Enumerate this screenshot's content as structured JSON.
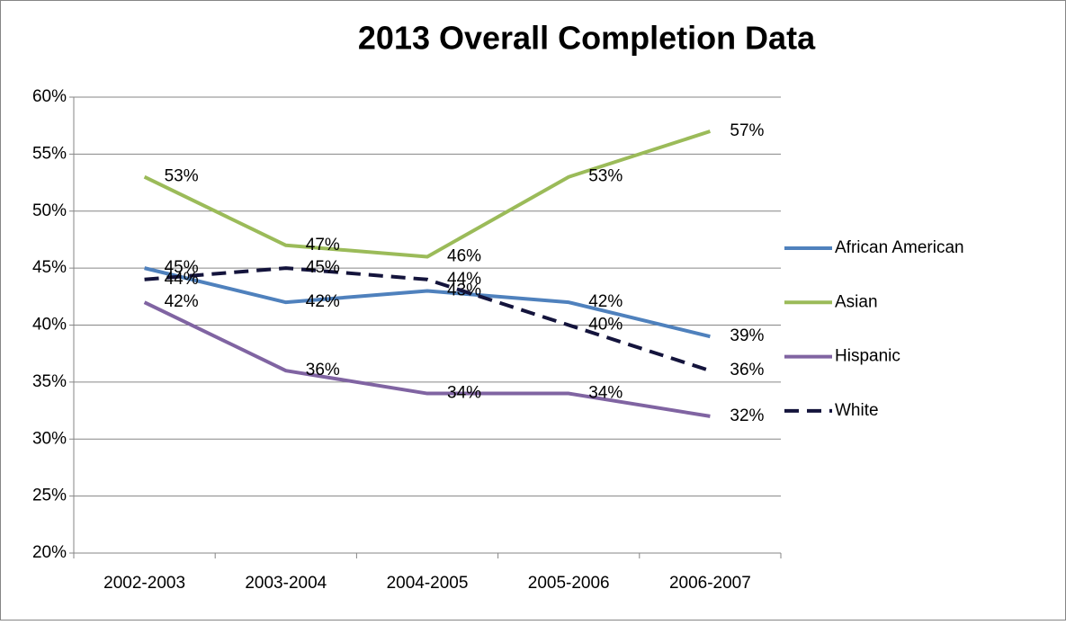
{
  "chart_data": {
    "type": "line",
    "title": "2013 Overall Completion Data",
    "categories": [
      "2002-2003",
      "2003-2004",
      "2004-2005",
      "2005-2006",
      "2006-2007"
    ],
    "series": [
      {
        "name": "African American",
        "color": "#4f81bd",
        "dashed": false,
        "values": [
          45,
          42,
          43,
          42,
          39
        ],
        "value_labels": [
          "45%",
          "42%",
          "43%",
          "42%",
          "39%"
        ]
      },
      {
        "name": "Asian",
        "color": "#9bbb59",
        "dashed": false,
        "values": [
          53,
          47,
          46,
          53,
          57
        ],
        "value_labels": [
          "53%",
          "47%",
          "46%",
          "53%",
          "57%"
        ]
      },
      {
        "name": "Hispanic",
        "color": "#8064a2",
        "dashed": false,
        "values": [
          42,
          36,
          34,
          34,
          32
        ],
        "value_labels": [
          "42%",
          "36%",
          "34%",
          "34%",
          "32%"
        ]
      },
      {
        "name": "White",
        "color": "#14143c",
        "dashed": true,
        "values": [
          44,
          45,
          44,
          40,
          36
        ],
        "value_labels": [
          "44%",
          "45%",
          "44%",
          "40%",
          "36%"
        ]
      }
    ],
    "ylim": [
      20,
      60
    ],
    "yticks": [
      {
        "value": 20,
        "label": "20%"
      },
      {
        "value": 25,
        "label": "25%"
      },
      {
        "value": 30,
        "label": "30%"
      },
      {
        "value": 35,
        "label": "35%"
      },
      {
        "value": 40,
        "label": "40%"
      },
      {
        "value": 45,
        "label": "45%"
      },
      {
        "value": 50,
        "label": "50%"
      },
      {
        "value": 55,
        "label": "55%"
      },
      {
        "value": 60,
        "label": "60%"
      }
    ],
    "grid": true,
    "legend": "right"
  }
}
